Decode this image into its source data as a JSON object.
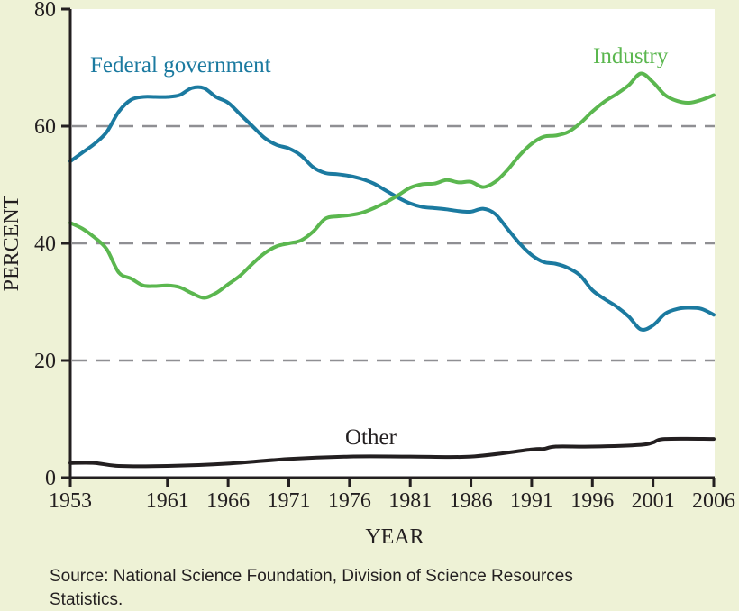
{
  "chart_data": {
    "type": "line",
    "title": "",
    "xlabel": "YEAR",
    "ylabel": "PERCENT",
    "xlim": [
      1953,
      2006
    ],
    "ylim": [
      0,
      80
    ],
    "x_ticks": [
      "1953",
      "1961",
      "1966",
      "1971",
      "1976",
      "1981",
      "1986",
      "1991",
      "1996",
      "2001",
      "2006"
    ],
    "y_ticks": [
      "0",
      "20",
      "40",
      "60",
      "80"
    ],
    "grid": "dashed horizontal at 20, 40, 60",
    "series": [
      {
        "name": "Federal government",
        "color": "#1b7aa0",
        "x": [
          1953,
          1954,
          1955,
          1956,
          1957,
          1958,
          1959,
          1960,
          1961,
          1962,
          1963,
          1964,
          1965,
          1966,
          1967,
          1968,
          1969,
          1970,
          1971,
          1972,
          1973,
          1974,
          1975,
          1976,
          1977,
          1978,
          1979,
          1980,
          1981,
          1982,
          1983,
          1984,
          1985,
          1986,
          1987,
          1988,
          1989,
          1990,
          1991,
          1992,
          1993,
          1994,
          1995,
          1996,
          1997,
          1998,
          1999,
          2000,
          2001,
          2002,
          2003,
          2004,
          2005,
          2006
        ],
        "y": [
          54,
          55.5,
          57,
          59,
          62.5,
          64.5,
          65,
          65,
          65,
          65.3,
          66.5,
          66.5,
          65,
          64,
          62,
          60,
          58,
          56.8,
          56.2,
          55,
          53,
          52,
          51.8,
          51.5,
          51,
          50.2,
          49,
          47.8,
          46.8,
          46.2,
          46,
          45.8,
          45.5,
          45.4,
          45.9,
          45,
          42.5,
          40,
          38,
          36.8,
          36.5,
          35.8,
          34.5,
          32,
          30.5,
          29.2,
          27.5,
          25.3,
          26,
          28,
          28.8,
          29,
          28.8,
          27.8
        ]
      },
      {
        "name": "Industry",
        "color": "#5bb74f",
        "x": [
          1953,
          1954,
          1955,
          1956,
          1957,
          1958,
          1959,
          1960,
          1961,
          1962,
          1963,
          1964,
          1965,
          1966,
          1967,
          1968,
          1969,
          1970,
          1971,
          1972,
          1973,
          1974,
          1975,
          1976,
          1977,
          1978,
          1979,
          1980,
          1981,
          1982,
          1983,
          1984,
          1985,
          1986,
          1987,
          1988,
          1989,
          1990,
          1991,
          1992,
          1993,
          1994,
          1995,
          1996,
          1997,
          1998,
          1999,
          2000,
          2001,
          2002,
          2003,
          2004,
          2005,
          2006
        ],
        "y": [
          43.5,
          42.5,
          41,
          39,
          35,
          34,
          32.8,
          32.7,
          32.8,
          32.5,
          31.5,
          30.7,
          31.5,
          33,
          34.5,
          36.5,
          38.3,
          39.5,
          40,
          40.5,
          42,
          44.2,
          44.6,
          44.8,
          45.2,
          46,
          47,
          48.2,
          49.5,
          50.1,
          50.2,
          50.8,
          50.4,
          50.5,
          49.6,
          50.5,
          52.5,
          55,
          57,
          58.2,
          58.4,
          59,
          60.5,
          62.5,
          64.2,
          65.5,
          67,
          69,
          67.5,
          65.3,
          64.3,
          64,
          64.5,
          65.3
        ]
      },
      {
        "name": "Other",
        "color": "#231f20",
        "x": [
          1953,
          1955,
          1957,
          1961,
          1966,
          1971,
          1976,
          1981,
          1986,
          1991,
          1992,
          1993,
          1996,
          2000,
          2001,
          2002,
          2006
        ],
        "y": [
          2.5,
          2.5,
          2,
          2,
          2.4,
          3.2,
          3.6,
          3.6,
          3.6,
          4.8,
          4.9,
          5.3,
          5.3,
          5.6,
          6,
          6.6,
          6.6
        ]
      }
    ]
  },
  "source_line1": "Source: National Science Foundation, Division of Science Resources",
  "source_line2": "Statistics."
}
